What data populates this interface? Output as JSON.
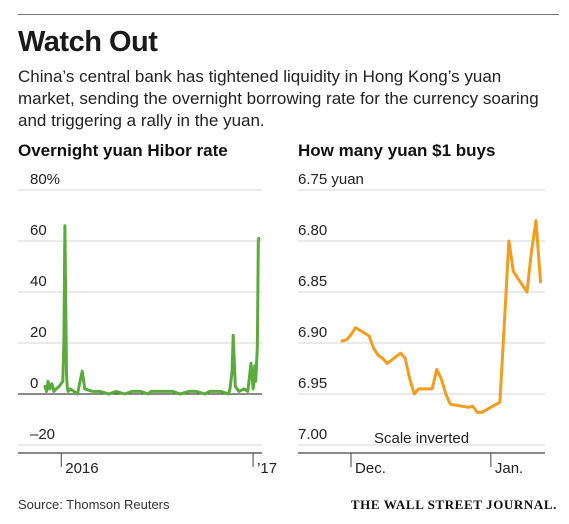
{
  "header": {
    "title": "Watch Out",
    "subtitle": "China’s central bank has tightened liquidity in Hong Kong’s yuan market, sending the overnight borrowing rate for the currency soaring and triggering a rally in the yuan."
  },
  "footer": {
    "source": "Source: Thomson Reuters",
    "publisher": "THE WALL STREET JOURNAL."
  },
  "colors": {
    "hibor_line": "#5aaa3c",
    "yuan_line": "#f39c1f",
    "grid": "#d6d6d6",
    "axis": "#444444"
  },
  "chart_data": [
    {
      "type": "line",
      "title": "Overnight yuan Hibor rate",
      "y_tick_labels": [
        "80%",
        "60",
        "40",
        "20",
        "0",
        "–20"
      ],
      "y_ticks": [
        80,
        60,
        40,
        20,
        0,
        -20
      ],
      "ylim": [
        -20,
        80
      ],
      "x_tick_labels": [
        "2016",
        "’17"
      ],
      "x_ticks": [
        "2016-01-01",
        "2017-01-01"
      ],
      "xlim": [
        "2015-12-01",
        "2017-01-18"
      ],
      "grid": true,
      "series": [
        {
          "x": [
            "2015-12-01",
            "2015-12-04",
            "2015-12-07",
            "2015-12-10",
            "2015-12-14",
            "2015-12-18",
            "2015-12-22",
            "2015-12-28",
            "2016-01-04",
            "2016-01-06",
            "2016-01-08",
            "2016-01-11",
            "2016-01-12",
            "2016-01-13",
            "2016-01-14",
            "2016-01-18",
            "2016-01-25",
            "2016-02-01",
            "2016-02-10",
            "2016-02-15",
            "2016-03-01",
            "2016-03-15",
            "2016-04-01",
            "2016-04-15",
            "2016-05-01",
            "2016-05-15",
            "2016-06-01",
            "2016-06-15",
            "2016-06-20",
            "2016-07-01",
            "2016-07-15",
            "2016-08-01",
            "2016-08-15",
            "2016-09-01",
            "2016-09-15",
            "2016-10-01",
            "2016-10-10",
            "2016-10-20",
            "2016-11-01",
            "2016-11-15",
            "2016-11-18",
            "2016-11-22",
            "2016-11-24",
            "2016-11-28",
            "2016-12-05",
            "2016-12-15",
            "2016-12-22",
            "2016-12-28",
            "2017-01-01",
            "2017-01-03",
            "2017-01-04",
            "2017-01-05",
            "2017-01-06",
            "2017-01-09",
            "2017-01-10",
            "2017-01-11",
            "2017-01-12"
          ],
          "values": [
            3,
            1,
            5,
            2,
            4,
            1,
            2,
            3,
            5,
            20,
            66,
            8,
            4,
            2,
            1,
            2,
            1,
            0,
            9,
            2,
            1,
            1,
            0,
            1,
            0,
            1,
            1,
            0,
            1,
            1,
            1,
            1,
            0,
            1,
            1,
            0,
            1,
            1,
            1,
            0,
            2,
            9,
            23,
            3,
            1,
            2,
            1,
            12,
            2,
            5,
            11,
            8,
            5,
            18,
            36,
            60,
            61
          ]
        }
      ],
      "annotations": []
    },
    {
      "type": "line",
      "title": "How many yuan $1 buys",
      "y_tick_labels": [
        "6.75 yuan",
        "6.80",
        "6.85",
        "6.90",
        "6.95",
        "7.00"
      ],
      "y_ticks": [
        6.75,
        6.8,
        6.85,
        6.9,
        6.95,
        7.0
      ],
      "ylim": [
        6.75,
        7.0
      ],
      "y_inverted": true,
      "x_tick_labels": [
        "Dec.",
        "Jan."
      ],
      "x_ticks": [
        "2016-12-01",
        "2017-01-01"
      ],
      "xlim": [
        "2016-11-29",
        "2017-01-13"
      ],
      "grid": true,
      "series": [
        {
          "x": [
            "2016-11-29",
            "2016-11-30",
            "2016-12-01",
            "2016-12-02",
            "2016-12-05",
            "2016-12-06",
            "2016-12-07",
            "2016-12-08",
            "2016-12-09",
            "2016-12-12",
            "2016-12-13",
            "2016-12-14",
            "2016-12-15",
            "2016-12-16",
            "2016-12-19",
            "2016-12-20",
            "2016-12-21",
            "2016-12-22",
            "2016-12-23",
            "2016-12-27",
            "2016-12-28",
            "2016-12-29",
            "2016-12-30",
            "2017-01-03",
            "2017-01-04",
            "2017-01-05",
            "2017-01-06",
            "2017-01-09",
            "2017-01-10",
            "2017-01-11",
            "2017-01-12"
          ],
          "values": [
            6.898,
            6.897,
            6.892,
            6.885,
            6.893,
            6.905,
            6.912,
            6.915,
            6.92,
            6.91,
            6.915,
            6.935,
            6.95,
            6.945,
            6.945,
            6.926,
            6.935,
            6.95,
            6.96,
            6.963,
            6.962,
            6.968,
            6.968,
            6.958,
            6.88,
            6.8,
            6.83,
            6.85,
            6.81,
            6.78,
            6.84
          ]
        }
      ],
      "annotations": [
        {
          "text": "Scale inverted"
        }
      ]
    }
  ]
}
